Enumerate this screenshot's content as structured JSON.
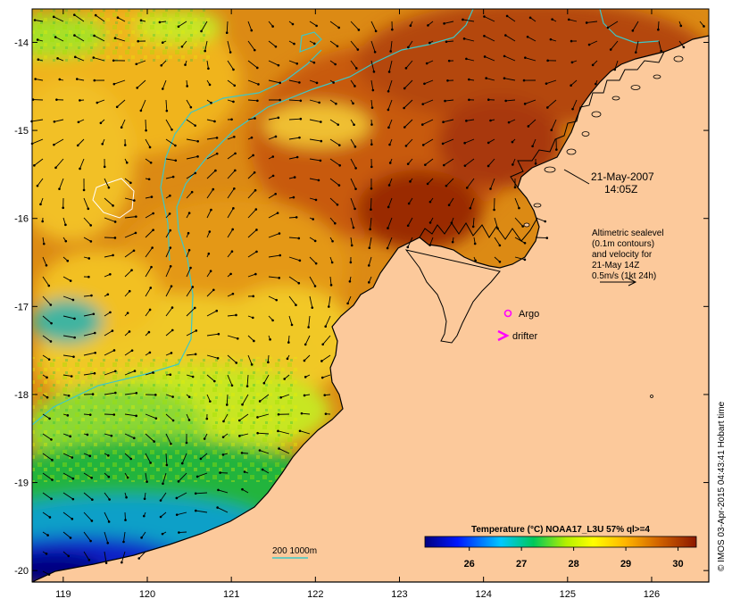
{
  "map": {
    "lon_range": [
      118.63,
      126.68
    ],
    "lat_range": [
      -20.13,
      -13.62
    ],
    "x_ticks": [
      {
        "value": 119,
        "label": "119"
      },
      {
        "value": 120,
        "label": "120"
      },
      {
        "value": 121,
        "label": "121"
      },
      {
        "value": 122,
        "label": "122"
      },
      {
        "value": 123,
        "label": "123"
      },
      {
        "value": 124,
        "label": "124"
      },
      {
        "value": 125,
        "label": "125"
      },
      {
        "value": 126,
        "label": "126"
      }
    ],
    "y_ticks": [
      {
        "value": -14,
        "label": "-14"
      },
      {
        "value": -15,
        "label": "-15"
      },
      {
        "value": -16,
        "label": "-16"
      },
      {
        "value": -17,
        "label": "-17"
      },
      {
        "value": -18,
        "label": "-18"
      },
      {
        "value": -19,
        "label": "-19"
      },
      {
        "value": -20,
        "label": "-20"
      }
    ]
  },
  "annotations": {
    "date": "21-May-2007",
    "time": "14:05Z",
    "sealevel_line1": "Altimetric sealevel",
    "sealevel_line2": "(0.1m contours)",
    "sealevel_line3": "and velocity for",
    "sealevel_line4": "21-May 14Z",
    "sealevel_line5": "0.5m/s (1kt 24h)",
    "argo_label": "Argo",
    "drifter_label": "drifter",
    "depth_label": "200  1000m"
  },
  "colorbar": {
    "title": "Temperature (°C) NOAA17_L3U 57% ql>=4",
    "range": [
      25.15,
      30.35
    ],
    "ticks": [
      {
        "value": 26,
        "label": "26"
      },
      {
        "value": 27,
        "label": "27"
      },
      {
        "value": 28,
        "label": "28"
      },
      {
        "value": 29,
        "label": "29"
      },
      {
        "value": 30,
        "label": "30"
      }
    ]
  },
  "credit": "© IMOS 03-Apr-2015 04:43:41 Hobart time",
  "colors": {
    "land": "#fcc99b",
    "argo": "#ff00ff",
    "drifter": "#ff00ff",
    "contour": "#3cc8c8",
    "frame": "#000000"
  }
}
